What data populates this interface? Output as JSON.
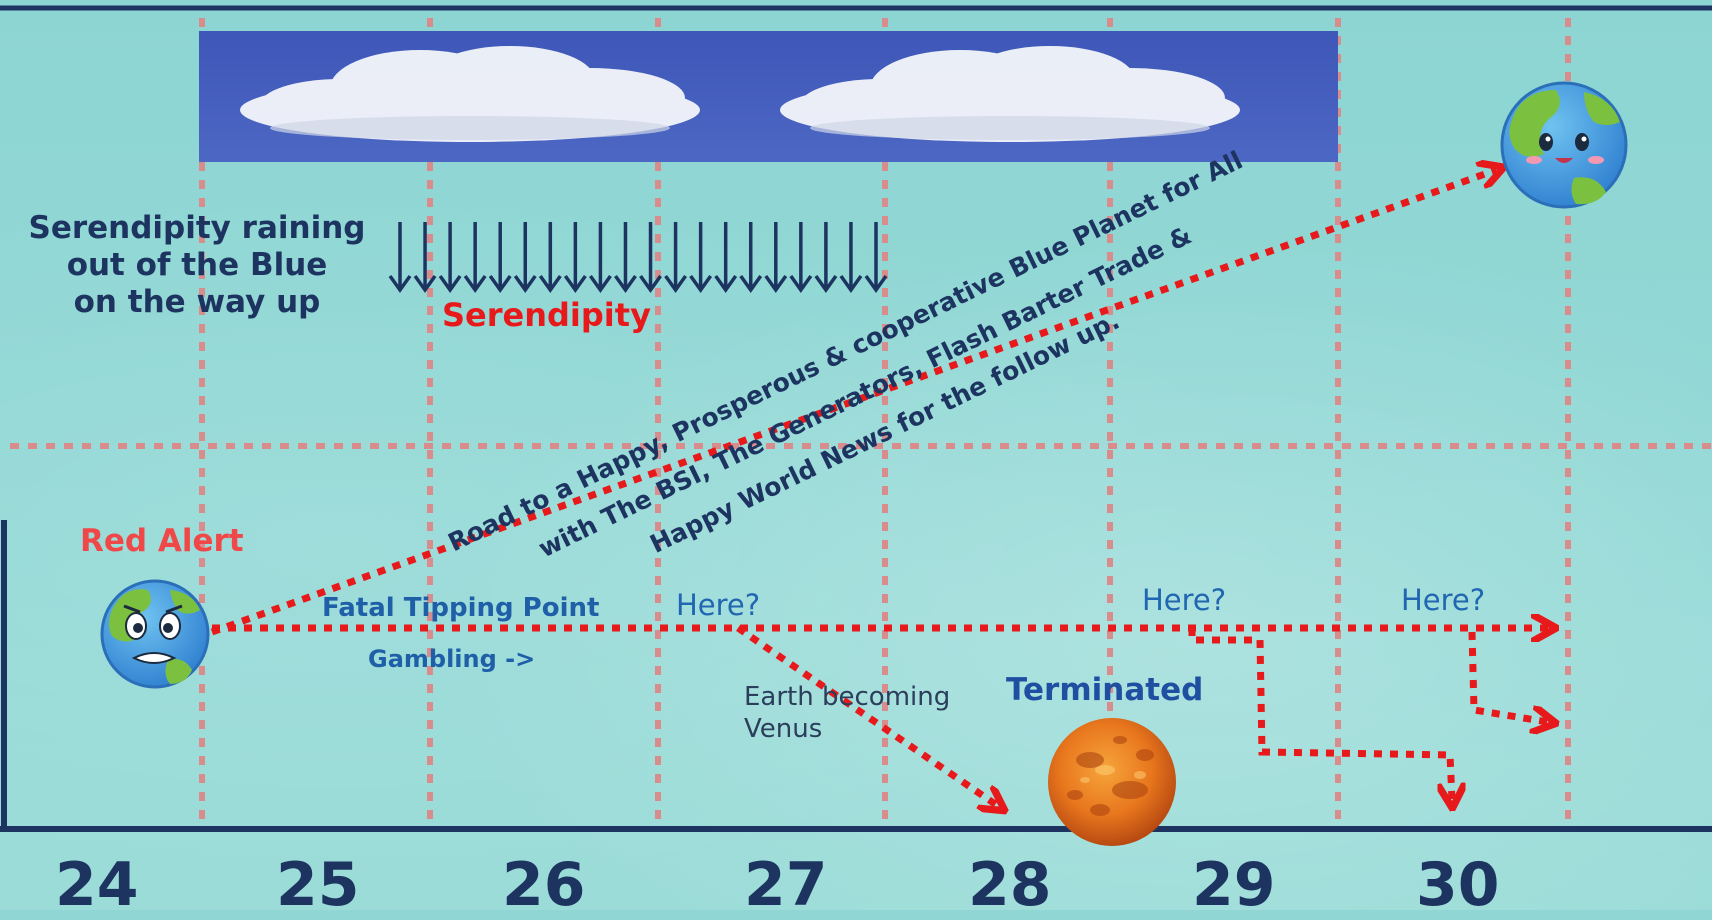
{
  "labels": {
    "serendipity_label": "Serendipity raining\nout of the Blue\non the way up",
    "serendipity_word": "Serendipity",
    "red_alert": "Red Alert",
    "fatal_tipping_point": "Fatal Tipping Point",
    "gambling": "Gambling ->",
    "here_1": "Here?",
    "here_2": "Here?",
    "here_3": "Here?",
    "earth_becoming_venus": "Earth becoming\nVenus",
    "terminated": "Terminated",
    "road": "Road to a Happy, Prosperous & cooperative Blue Planet for All\nwith The BSI, The Generators, Flash Barter Trade &\nHappy World News for the follow up."
  },
  "days": [
    "24",
    "25",
    "26",
    "27",
    "28",
    "29",
    "30"
  ],
  "icons": {
    "worried_earth": "worried-earth-icon",
    "happy_earth": "happy-earth-icon",
    "venus": "venus-planet-icon",
    "clouds": "clouds-image"
  },
  "colors": {
    "background": "#8fd6d4",
    "frame": "#1d3461",
    "grid": "#d98c8c",
    "arrow": "#e8191b",
    "rain": "#1d3461"
  },
  "serendipity_arrow_count": 20
}
